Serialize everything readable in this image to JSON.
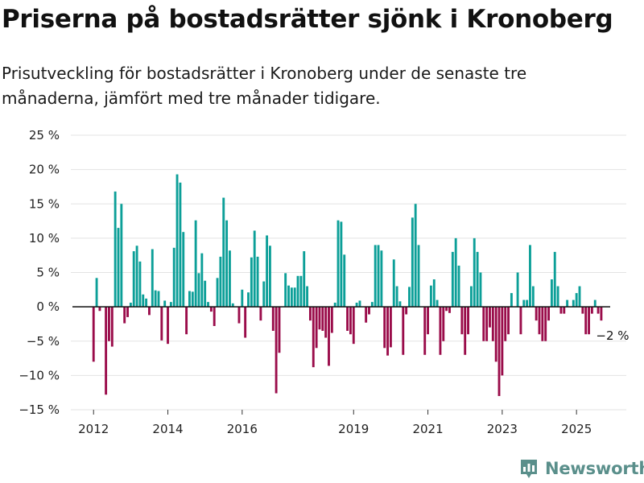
{
  "header": {
    "title": "Priserna på bostadsrätter sjönk i Kronoberg",
    "subtitle": "Prisutveckling för bostadsrätter i Kronoberg under de senaste tre månaderna, jämfört med tre månader tidigare."
  },
  "brand": {
    "name": "Newsworthy",
    "icon": "newsworthy-logo-icon",
    "color": "#5a8f8b"
  },
  "colors": {
    "positive": "#0c9f98",
    "negative": "#9a0c4a",
    "grid": "#e3e3e3",
    "axis": "#111111"
  },
  "chart_data": {
    "type": "bar",
    "title": "Priserna på bostadsrätter sjönk i Kronoberg",
    "xlabel": "",
    "ylabel": "",
    "ylim": [
      -15,
      25
    ],
    "y_ticks": [
      25,
      20,
      15,
      10,
      5,
      0,
      -5,
      -10,
      -15
    ],
    "y_tick_labels": [
      "25 %",
      "20 %",
      "15 %",
      "10 %",
      "5 %",
      "0 %",
      "−5 %",
      "−10 %",
      "−15 %"
    ],
    "x_tick_labels": [
      "2012",
      "2014",
      "2016",
      "2019",
      "2021",
      "2023",
      "2025"
    ],
    "x_tick_dates": [
      "2012-01",
      "2014-01",
      "2016-01",
      "2019-01",
      "2021-01",
      "2023-01",
      "2025-01"
    ],
    "x_range": [
      "2011-08",
      "2026-03"
    ],
    "grid": true,
    "annotation": {
      "text": "−2 %",
      "date": "2025-06",
      "value": -2
    },
    "series": [
      {
        "points": [
          {
            "date": "2012-01",
            "value": -8.0
          },
          {
            "date": "2012-02",
            "value": 4.2
          },
          {
            "date": "2012-03",
            "value": -0.6
          },
          {
            "date": "2012-05",
            "value": -12.8
          },
          {
            "date": "2012-06",
            "value": -5.0
          },
          {
            "date": "2012-07",
            "value": -5.8
          },
          {
            "date": "2012-08",
            "value": 16.8
          },
          {
            "date": "2012-09",
            "value": 11.5
          },
          {
            "date": "2012-10",
            "value": 15.0
          },
          {
            "date": "2012-11",
            "value": -2.4
          },
          {
            "date": "2012-12",
            "value": -1.5
          },
          {
            "date": "2013-01",
            "value": 0.6
          },
          {
            "date": "2013-02",
            "value": 8.1
          },
          {
            "date": "2013-03",
            "value": 8.9
          },
          {
            "date": "2013-04",
            "value": 6.6
          },
          {
            "date": "2013-05",
            "value": 1.8
          },
          {
            "date": "2013-06",
            "value": 1.2
          },
          {
            "date": "2013-07",
            "value": -1.2
          },
          {
            "date": "2013-08",
            "value": 8.4
          },
          {
            "date": "2013-09",
            "value": 2.4
          },
          {
            "date": "2013-10",
            "value": 2.3
          },
          {
            "date": "2013-11",
            "value": -4.9
          },
          {
            "date": "2013-12",
            "value": 0.9
          },
          {
            "date": "2014-01",
            "value": -5.4
          },
          {
            "date": "2014-02",
            "value": 0.7
          },
          {
            "date": "2014-03",
            "value": 8.6
          },
          {
            "date": "2014-04",
            "value": 19.3
          },
          {
            "date": "2014-05",
            "value": 18.1
          },
          {
            "date": "2014-06",
            "value": 10.9
          },
          {
            "date": "2014-07",
            "value": -4.0
          },
          {
            "date": "2014-08",
            "value": 2.3
          },
          {
            "date": "2014-09",
            "value": 2.2
          },
          {
            "date": "2014-10",
            "value": 12.6
          },
          {
            "date": "2014-11",
            "value": 4.9
          },
          {
            "date": "2014-12",
            "value": 7.8
          },
          {
            "date": "2015-01",
            "value": 3.8
          },
          {
            "date": "2015-02",
            "value": 0.7
          },
          {
            "date": "2015-03",
            "value": -0.7
          },
          {
            "date": "2015-04",
            "value": -2.8
          },
          {
            "date": "2015-05",
            "value": 4.2
          },
          {
            "date": "2015-06",
            "value": 7.3
          },
          {
            "date": "2015-07",
            "value": 15.9
          },
          {
            "date": "2015-08",
            "value": 12.6
          },
          {
            "date": "2015-09",
            "value": 8.2
          },
          {
            "date": "2015-10",
            "value": 0.5
          },
          {
            "date": "2015-12",
            "value": -2.4
          },
          {
            "date": "2016-01",
            "value": 2.5
          },
          {
            "date": "2016-02",
            "value": -4.5
          },
          {
            "date": "2016-03",
            "value": 2.1
          },
          {
            "date": "2016-04",
            "value": 7.2
          },
          {
            "date": "2016-05",
            "value": 11.1
          },
          {
            "date": "2016-06",
            "value": 7.3
          },
          {
            "date": "2016-07",
            "value": -2.0
          },
          {
            "date": "2016-08",
            "value": 3.7
          },
          {
            "date": "2016-09",
            "value": 10.4
          },
          {
            "date": "2016-10",
            "value": 8.9
          },
          {
            "date": "2016-11",
            "value": -3.5
          },
          {
            "date": "2016-12",
            "value": -12.6
          },
          {
            "date": "2017-01",
            "value": -6.7
          },
          {
            "date": "2017-03",
            "value": 4.9
          },
          {
            "date": "2017-04",
            "value": 3.1
          },
          {
            "date": "2017-05",
            "value": 2.8
          },
          {
            "date": "2017-06",
            "value": 2.8
          },
          {
            "date": "2017-07",
            "value": 4.5
          },
          {
            "date": "2017-08",
            "value": 4.5
          },
          {
            "date": "2017-09",
            "value": 8.1
          },
          {
            "date": "2017-10",
            "value": 3.0
          },
          {
            "date": "2017-11",
            "value": -2.0
          },
          {
            "date": "2017-12",
            "value": -8.8
          },
          {
            "date": "2018-01",
            "value": -6.0
          },
          {
            "date": "2018-02",
            "value": -3.3
          },
          {
            "date": "2018-03",
            "value": -3.5
          },
          {
            "date": "2018-04",
            "value": -4.5
          },
          {
            "date": "2018-05",
            "value": -8.6
          },
          {
            "date": "2018-06",
            "value": -3.8
          },
          {
            "date": "2018-07",
            "value": 0.6
          },
          {
            "date": "2018-08",
            "value": 12.6
          },
          {
            "date": "2018-09",
            "value": 12.4
          },
          {
            "date": "2018-10",
            "value": 7.6
          },
          {
            "date": "2018-11",
            "value": -3.5
          },
          {
            "date": "2018-12",
            "value": -4.0
          },
          {
            "date": "2019-01",
            "value": -5.4
          },
          {
            "date": "2019-02",
            "value": 0.6
          },
          {
            "date": "2019-03",
            "value": 0.9
          },
          {
            "date": "2019-05",
            "value": -2.3
          },
          {
            "date": "2019-06",
            "value": -1.1
          },
          {
            "date": "2019-07",
            "value": 0.7
          },
          {
            "date": "2019-08",
            "value": 9.0
          },
          {
            "date": "2019-09",
            "value": 9.0
          },
          {
            "date": "2019-10",
            "value": 8.2
          },
          {
            "date": "2019-11",
            "value": -6.0
          },
          {
            "date": "2019-12",
            "value": -7.1
          },
          {
            "date": "2020-01",
            "value": -5.9
          },
          {
            "date": "2020-02",
            "value": 6.9
          },
          {
            "date": "2020-03",
            "value": 3.0
          },
          {
            "date": "2020-04",
            "value": 0.8
          },
          {
            "date": "2020-05",
            "value": -7.0
          },
          {
            "date": "2020-06",
            "value": -1.1
          },
          {
            "date": "2020-07",
            "value": 2.9
          },
          {
            "date": "2020-08",
            "value": 13.0
          },
          {
            "date": "2020-09",
            "value": 15.0
          },
          {
            "date": "2020-10",
            "value": 9.0
          },
          {
            "date": "2020-12",
            "value": -7.0
          },
          {
            "date": "2021-01",
            "value": -4.0
          },
          {
            "date": "2021-02",
            "value": 3.1
          },
          {
            "date": "2021-03",
            "value": 4.0
          },
          {
            "date": "2021-04",
            "value": 1.0
          },
          {
            "date": "2021-05",
            "value": -7.0
          },
          {
            "date": "2021-06",
            "value": -5.0
          },
          {
            "date": "2021-07",
            "value": -0.6
          },
          {
            "date": "2021-08",
            "value": -0.9
          },
          {
            "date": "2021-09",
            "value": 8.0
          },
          {
            "date": "2021-10",
            "value": 10.0
          },
          {
            "date": "2021-11",
            "value": 6.0
          },
          {
            "date": "2021-12",
            "value": -4.0
          },
          {
            "date": "2022-01",
            "value": -7.0
          },
          {
            "date": "2022-02",
            "value": -4.0
          },
          {
            "date": "2022-03",
            "value": 3.0
          },
          {
            "date": "2022-04",
            "value": 10.0
          },
          {
            "date": "2022-05",
            "value": 8.0
          },
          {
            "date": "2022-06",
            "value": 5.0
          },
          {
            "date": "2022-07",
            "value": -5.0
          },
          {
            "date": "2022-08",
            "value": -5.0
          },
          {
            "date": "2022-09",
            "value": -3.0
          },
          {
            "date": "2022-10",
            "value": -5.0
          },
          {
            "date": "2022-11",
            "value": -8.0
          },
          {
            "date": "2022-12",
            "value": -13.0
          },
          {
            "date": "2023-01",
            "value": -10.0
          },
          {
            "date": "2023-02",
            "value": -5.0
          },
          {
            "date": "2023-03",
            "value": -4.0
          },
          {
            "date": "2023-04",
            "value": 2.0
          },
          {
            "date": "2023-06",
            "value": 5.0
          },
          {
            "date": "2023-07",
            "value": -4.0
          },
          {
            "date": "2023-08",
            "value": 1.0
          },
          {
            "date": "2023-09",
            "value": 1.0
          },
          {
            "date": "2023-10",
            "value": 9.0
          },
          {
            "date": "2023-11",
            "value": 3.0
          },
          {
            "date": "2023-12",
            "value": -2.0
          },
          {
            "date": "2024-01",
            "value": -4.0
          },
          {
            "date": "2024-02",
            "value": -5.0
          },
          {
            "date": "2024-03",
            "value": -5.0
          },
          {
            "date": "2024-04",
            "value": -2.0
          },
          {
            "date": "2024-05",
            "value": 4.0
          },
          {
            "date": "2024-06",
            "value": 8.0
          },
          {
            "date": "2024-07",
            "value": 3.0
          },
          {
            "date": "2024-08",
            "value": -1.0
          },
          {
            "date": "2024-09",
            "value": -1.0
          },
          {
            "date": "2024-10",
            "value": 1.0
          },
          {
            "date": "2024-12",
            "value": 1.0
          },
          {
            "date": "2025-01",
            "value": 2.0
          },
          {
            "date": "2025-02",
            "value": 3.0
          },
          {
            "date": "2025-03",
            "value": -1.0
          },
          {
            "date": "2025-04",
            "value": -4.0
          },
          {
            "date": "2025-05",
            "value": -4.0
          },
          {
            "date": "2025-06",
            "value": -1.0
          },
          {
            "date": "2025-07",
            "value": 1.0
          },
          {
            "date": "2025-08",
            "value": -1.0
          },
          {
            "date": "2025-09",
            "value": -2.0
          }
        ]
      }
    ]
  }
}
